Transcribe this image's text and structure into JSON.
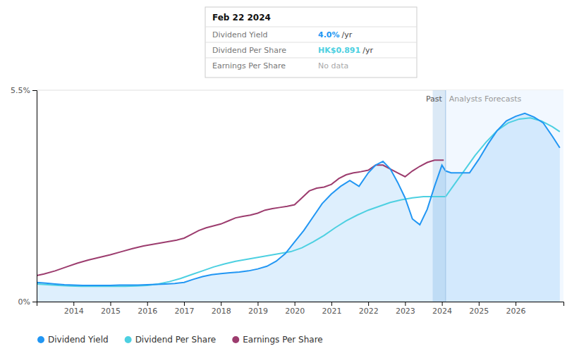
{
  "chart_data": {
    "type": "line",
    "series": [
      {
        "name": "Dividend Yield",
        "color": "#2196F3",
        "type": "area",
        "x": [
          2013.0,
          2013.25,
          2013.5,
          2013.75,
          2014.0,
          2014.25,
          2014.5,
          2014.75,
          2015.0,
          2015.25,
          2015.5,
          2015.75,
          2016.0,
          2016.25,
          2016.5,
          2016.75,
          2017.0,
          2017.25,
          2017.5,
          2017.75,
          2018.0,
          2018.25,
          2018.5,
          2018.75,
          2019.0,
          2019.25,
          2019.5,
          2019.75,
          2020.0,
          2020.25,
          2020.5,
          2020.75,
          2021.0,
          2021.25,
          2021.5,
          2021.75,
          2022.0,
          2022.2,
          2022.4,
          2022.6,
          2022.8,
          2023.0,
          2023.2,
          2023.4,
          2023.6,
          2023.8,
          2024.0,
          2024.1,
          2024.25,
          2024.5,
          2024.75,
          2025.0,
          2025.25,
          2025.5,
          2025.75,
          2026.0,
          2026.25,
          2026.5,
          2026.75,
          2027.0,
          2027.2
        ],
        "values": [
          0.5,
          0.48,
          0.46,
          0.44,
          0.43,
          0.42,
          0.42,
          0.42,
          0.42,
          0.43,
          0.43,
          0.43,
          0.44,
          0.45,
          0.46,
          0.47,
          0.5,
          0.58,
          0.65,
          0.7,
          0.73,
          0.75,
          0.77,
          0.8,
          0.85,
          0.92,
          1.05,
          1.25,
          1.55,
          1.85,
          2.2,
          2.55,
          2.8,
          3.0,
          3.15,
          3.0,
          3.35,
          3.55,
          3.65,
          3.45,
          3.1,
          2.7,
          2.15,
          2.0,
          2.4,
          3.0,
          3.55,
          3.4,
          3.35,
          3.35,
          3.35,
          3.7,
          4.1,
          4.45,
          4.7,
          4.82,
          4.9,
          4.8,
          4.65,
          4.3,
          4.0
        ]
      },
      {
        "name": "Dividend Per Share",
        "color": "#4DD0E1",
        "type": "line",
        "x": [
          2013.0,
          2013.3,
          2013.6,
          2013.9,
          2014.2,
          2014.5,
          2014.8,
          2015.1,
          2015.4,
          2015.7,
          2016.0,
          2016.3,
          2016.6,
          2016.9,
          2017.2,
          2017.5,
          2017.8,
          2018.1,
          2018.4,
          2018.7,
          2019.0,
          2019.3,
          2019.6,
          2019.9,
          2020.2,
          2020.5,
          2020.8,
          2021.1,
          2021.4,
          2021.7,
          2022.0,
          2022.3,
          2022.6,
          2022.9,
          2023.2,
          2023.5,
          2023.8,
          2024.05,
          2024.1,
          2024.3,
          2024.6,
          2024.9,
          2025.2,
          2025.5,
          2025.8,
          2026.1,
          2026.4,
          2026.7,
          2027.0,
          2027.2
        ],
        "values": [
          0.46,
          0.44,
          0.42,
          0.41,
          0.4,
          0.4,
          0.4,
          0.4,
          0.4,
          0.41,
          0.42,
          0.46,
          0.52,
          0.6,
          0.7,
          0.8,
          0.9,
          0.98,
          1.05,
          1.1,
          1.15,
          1.2,
          1.25,
          1.3,
          1.4,
          1.55,
          1.72,
          1.92,
          2.1,
          2.25,
          2.38,
          2.48,
          2.58,
          2.65,
          2.7,
          2.73,
          2.73,
          2.73,
          2.73,
          3.0,
          3.4,
          3.8,
          4.15,
          4.45,
          4.65,
          4.75,
          4.78,
          4.7,
          4.55,
          4.42
        ]
      },
      {
        "name": "Earnings Per Share",
        "color": "#9C3C6E",
        "type": "line",
        "x": [
          2013.0,
          2013.2,
          2013.5,
          2013.8,
          2014.1,
          2014.4,
          2014.7,
          2015.0,
          2015.3,
          2015.6,
          2015.9,
          2016.2,
          2016.5,
          2016.8,
          2017.0,
          2017.2,
          2017.4,
          2017.6,
          2017.8,
          2018.0,
          2018.2,
          2018.4,
          2018.6,
          2018.8,
          2019.0,
          2019.2,
          2019.4,
          2019.6,
          2019.8,
          2020.0,
          2020.2,
          2020.4,
          2020.6,
          2020.8,
          2021.0,
          2021.2,
          2021.4,
          2021.6,
          2021.8,
          2022.0,
          2022.2,
          2022.4,
          2022.6,
          2022.8,
          2023.0,
          2023.2,
          2023.4,
          2023.6,
          2023.8,
          2024.05
        ],
        "values": [
          0.68,
          0.72,
          0.8,
          0.9,
          1.0,
          1.08,
          1.15,
          1.22,
          1.3,
          1.38,
          1.45,
          1.5,
          1.55,
          1.6,
          1.65,
          1.75,
          1.85,
          1.92,
          1.97,
          2.02,
          2.1,
          2.18,
          2.22,
          2.25,
          2.3,
          2.38,
          2.42,
          2.45,
          2.48,
          2.52,
          2.7,
          2.88,
          2.95,
          2.98,
          3.05,
          3.2,
          3.3,
          3.35,
          3.38,
          3.42,
          3.55,
          3.55,
          3.45,
          3.35,
          3.25,
          3.4,
          3.52,
          3.62,
          3.68,
          3.68
        ]
      }
    ],
    "xlim": [
      2013.0,
      2027.3
    ],
    "xticks": [
      2014,
      2015,
      2016,
      2017,
      2018,
      2019,
      2020,
      2021,
      2022,
      2023,
      2024,
      2025,
      2026
    ],
    "ylim": [
      0.0,
      5.5
    ],
    "yticks": [
      {
        "value": 0,
        "label": "0%"
      },
      {
        "value": 5.5,
        "label": "5.5%"
      }
    ],
    "grid": true,
    "legend": "lower left",
    "divider": 2024.1,
    "highlight": [
      2023.75,
      2024.1
    ],
    "annotations": [
      "Past",
      "Analysts Forecasts"
    ],
    "tooltip": {
      "title": "Feb 22 2024",
      "rows": [
        {
          "label": "Dividend Yield",
          "value": "4.0%",
          "unit": "/yr"
        },
        {
          "label": "Dividend Per Share",
          "value": "HK$0.891",
          "unit": "/yr"
        },
        {
          "label": "Earnings Per Share",
          "value": "No data"
        }
      ]
    }
  }
}
